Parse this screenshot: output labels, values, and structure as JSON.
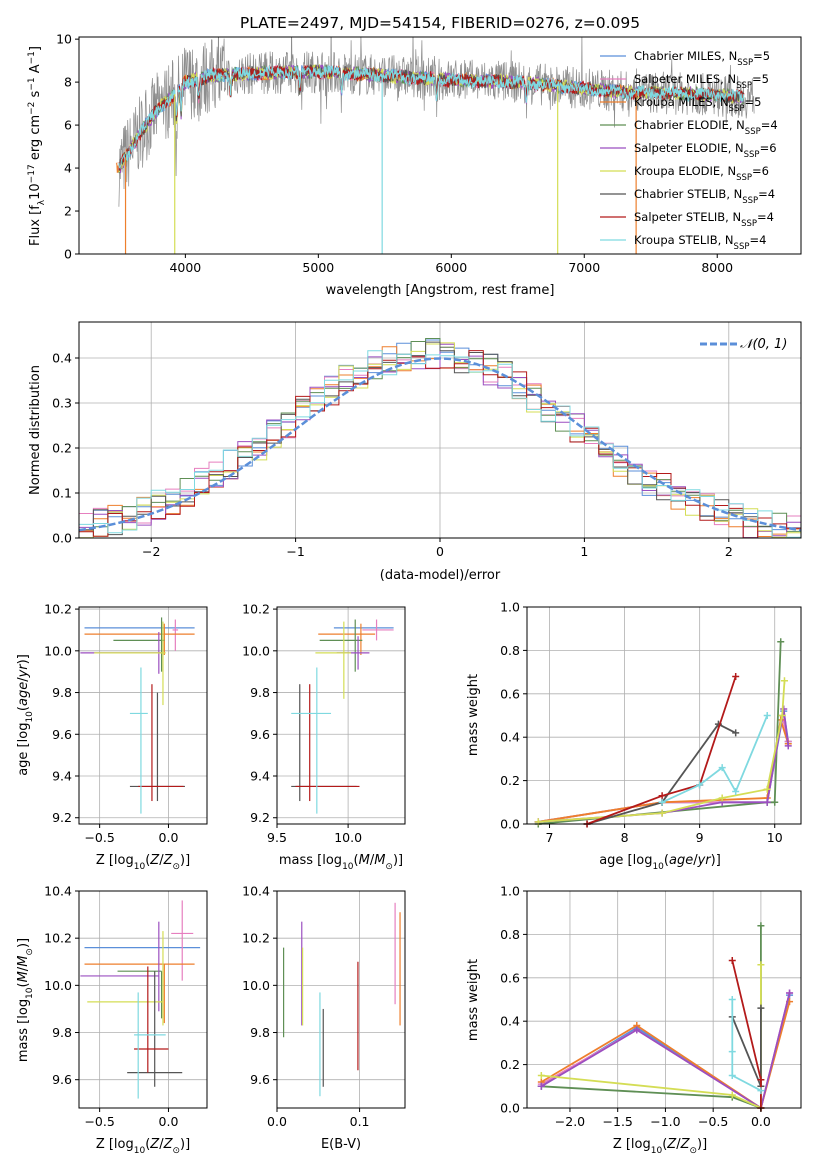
{
  "colors": {
    "chabrier_miles": "#5b8fd9",
    "salpeter_miles": "#e67fbf",
    "kroupa_miles": "#ee7f2d",
    "chabrier_elodie": "#5f8f55",
    "salpeter_elodie": "#9b4fc0",
    "kroupa_elodie": "#d4dd55",
    "chabrier_stelib": "#555555",
    "salpeter_stelib": "#b31a1a",
    "kroupa_stelib": "#7fd9e0",
    "data_spectrum": "#8c8c8c",
    "normal_curve": "#5b8fd9"
  },
  "chart_data": [
    {
      "id": "spectrum",
      "type": "line",
      "title": "PLATE=2497, MJD=54154, FIBERID=0276, z=0.095",
      "xlabel": "wavelength [Angstrom, rest frame]",
      "ylabel": "Flux [f_λ10^-17 erg cm^-2 s^-1 A^-1]",
      "xlim": [
        3200,
        8630
      ],
      "ylim": [
        0,
        10.1
      ],
      "xticks": [
        "4000",
        "5000",
        "6000",
        "7000",
        "8000"
      ],
      "yticks": [
        "0",
        "2",
        "4",
        "6",
        "8",
        "10"
      ],
      "grid": false,
      "legend_position": "right",
      "legend": [
        {
          "label": "Chabrier MILES, N",
          "sub": "SSP",
          "val": "=5",
          "color": "chabrier_miles"
        },
        {
          "label": "Salpeter MILES, N",
          "sub": "SSP",
          "val": "=5",
          "color": "salpeter_miles"
        },
        {
          "label": "Kroupa MILES, N",
          "sub": "SSP",
          "val": "=5",
          "color": "kroupa_miles"
        },
        {
          "label": "Chabrier ELODIE, N",
          "sub": "SSP",
          "val": "=4",
          "color": "chabrier_elodie"
        },
        {
          "label": "Salpeter ELODIE, N",
          "sub": "SSP",
          "val": "=6",
          "color": "salpeter_elodie"
        },
        {
          "label": "Kroupa ELODIE, N",
          "sub": "SSP",
          "val": "=6",
          "color": "kroupa_elodie"
        },
        {
          "label": "Chabrier STELIB, N",
          "sub": "SSP",
          "val": "=4",
          "color": "chabrier_stelib"
        },
        {
          "label": "Salpeter STELIB, N",
          "sub": "SSP",
          "val": "=4",
          "color": "salpeter_stelib"
        },
        {
          "label": "Kroupa STELIB, N",
          "sub": "SSP",
          "val": "=4",
          "color": "kroupa_stelib"
        }
      ],
      "continuum_x": [
        3500,
        3600,
        3700,
        3800,
        3900,
        4000,
        4200,
        4500,
        5000,
        5500,
        6000,
        6500,
        7000,
        7400,
        7600,
        8000,
        8200
      ],
      "continuum_y": [
        4.0,
        5.0,
        6.0,
        6.8,
        7.3,
        8.0,
        8.3,
        8.4,
        8.5,
        8.3,
        8.1,
        8.0,
        7.7,
        7.5,
        7.5,
        7.4,
        7.3
      ]
    },
    {
      "id": "residuals",
      "type": "bar",
      "xlabel": "(data-model)/error",
      "ylabel": "Normed distribution",
      "xlim": [
        -2.5,
        2.5
      ],
      "ylim": [
        0,
        0.48
      ],
      "xticks": [
        "−2",
        "−1",
        "0",
        "1",
        "2"
      ],
      "yticks": [
        "0.0",
        "0.1",
        "0.2",
        "0.3",
        "0.4"
      ],
      "grid": true,
      "legend_position": "top-right",
      "normal_label": "𝒩(0, 1)",
      "bin_edges_start": -2.5,
      "bin_width": 0.1
    },
    {
      "id": "age_vs_Z",
      "type": "scatter",
      "xlabel": "Z [log10(Z/Z⊙)]",
      "ylabel": "age [log10(age/yr)]",
      "xlim": [
        -0.65,
        0.28
      ],
      "ylim": [
        9.17,
        10.21
      ],
      "xticks": [
        "−0.5",
        "0.0"
      ],
      "yticks": [
        "9.2",
        "9.4",
        "9.6",
        "9.8",
        "10.0",
        "10.2"
      ],
      "grid": true,
      "points": [
        {
          "x": -0.03,
          "y": 10.11,
          "xerr": [
            0.58,
            0.22
          ],
          "yerr": [
            0.0,
            0.0
          ],
          "color": "chabrier_miles"
        },
        {
          "x": 0.05,
          "y": 10.1,
          "xerr": [
            0.02,
            0.02
          ],
          "yerr": [
            0.1,
            0.05
          ],
          "color": "salpeter_miles"
        },
        {
          "x": -0.03,
          "y": 10.08,
          "xerr": [
            0.58,
            0.22
          ],
          "yerr": [
            0.1,
            0.05
          ],
          "color": "kroupa_miles"
        },
        {
          "x": -0.05,
          "y": 10.05,
          "xerr": [
            0.35,
            0.02
          ],
          "yerr": [
            0.15,
            0.11
          ],
          "color": "chabrier_elodie"
        },
        {
          "x": -0.07,
          "y": 9.99,
          "xerr": [
            0.57,
            0.03
          ],
          "yerr": [
            0.1,
            0.1
          ],
          "color": "salpeter_elodie"
        },
        {
          "x": -0.04,
          "y": 9.99,
          "xerr": [
            0.5,
            0.02
          ],
          "yerr": [
            0.25,
            0.15
          ],
          "color": "kroupa_elodie"
        },
        {
          "x": -0.08,
          "y": 9.35,
          "xerr": [
            0.2,
            0.2
          ],
          "yerr": [
            0.07,
            0.45
          ],
          "color": "chabrier_stelib"
        },
        {
          "x": -0.12,
          "y": 9.35,
          "xerr": [
            0.1,
            0.23
          ],
          "yerr": [
            0.07,
            0.49
          ],
          "color": "salpeter_stelib"
        },
        {
          "x": -0.2,
          "y": 9.7,
          "xerr": [
            0.08,
            0.05
          ],
          "yerr": [
            0.48,
            0.22
          ],
          "color": "kroupa_stelib"
        }
      ]
    },
    {
      "id": "age_vs_mass",
      "type": "scatter",
      "xlabel": "mass [log10(M/M⊙)]",
      "ylabel": "",
      "xlim": [
        9.5,
        10.4
      ],
      "ylim": [
        9.17,
        10.21
      ],
      "xticks": [
        "9.5",
        "10.0"
      ],
      "yticks": [
        "9.2",
        "9.4",
        "9.6",
        "9.8",
        "10.0",
        "10.2"
      ],
      "grid": true,
      "points": [
        {
          "x": 10.16,
          "y": 10.11,
          "xerr": [
            0.26,
            0.16
          ],
          "yerr": [
            0.0,
            0.0
          ],
          "color": "chabrier_miles"
        },
        {
          "x": 10.2,
          "y": 10.1,
          "xerr": [
            0.1,
            0.12
          ],
          "yerr": [
            0.05,
            0.05
          ],
          "color": "salpeter_miles"
        },
        {
          "x": 10.09,
          "y": 10.08,
          "xerr": [
            0.3,
            0.1
          ],
          "yerr": [
            0.1,
            0.05
          ],
          "color": "kroupa_miles"
        },
        {
          "x": 10.05,
          "y": 10.05,
          "xerr": [
            0.25,
            0.05
          ],
          "yerr": [
            0.15,
            0.1
          ],
          "color": "chabrier_elodie"
        },
        {
          "x": 10.07,
          "y": 9.99,
          "xerr": [
            0.15,
            0.08
          ],
          "yerr": [
            0.08,
            0.08
          ],
          "color": "salpeter_elodie"
        },
        {
          "x": 9.97,
          "y": 9.99,
          "xerr": [
            0.2,
            0.05
          ],
          "yerr": [
            0.22,
            0.15
          ],
          "color": "kroupa_elodie"
        },
        {
          "x": 9.66,
          "y": 9.35,
          "xerr": [
            0.06,
            0.4
          ],
          "yerr": [
            0.07,
            0.49
          ],
          "color": "chabrier_stelib"
        },
        {
          "x": 9.73,
          "y": 9.35,
          "xerr": [
            0.1,
            0.35
          ],
          "yerr": [
            0.07,
            0.49
          ],
          "color": "salpeter_stelib"
        },
        {
          "x": 9.78,
          "y": 9.7,
          "xerr": [
            0.18,
            0.1
          ],
          "yerr": [
            0.48,
            0.22
          ],
          "color": "kroupa_stelib"
        }
      ]
    },
    {
      "id": "massweight_vs_age",
      "type": "line",
      "xlabel": "age [log10(age/yr)]",
      "ylabel": "mass weight",
      "xlim": [
        6.7,
        10.35
      ],
      "ylim": [
        0,
        1.0
      ],
      "xticks": [
        "7",
        "8",
        "9",
        "10"
      ],
      "yticks": [
        "0.0",
        "0.2",
        "0.4",
        "0.6",
        "0.8",
        "1.0"
      ],
      "grid": true,
      "series": [
        {
          "color": "chabrier_miles",
          "x": [
            6.85,
            8.5,
            9.9,
            10.12,
            10.18
          ],
          "y": [
            0.01,
            0.1,
            0.1,
            0.52,
            0.38
          ]
        },
        {
          "color": "salpeter_miles",
          "x": [
            6.85,
            8.5,
            9.9,
            10.1,
            10.18
          ],
          "y": [
            0.01,
            0.1,
            0.1,
            0.5,
            0.38
          ]
        },
        {
          "color": "kroupa_miles",
          "x": [
            6.85,
            8.5,
            9.9,
            10.08,
            10.18
          ],
          "y": [
            0.01,
            0.1,
            0.12,
            0.48,
            0.37
          ]
        },
        {
          "color": "chabrier_elodie",
          "x": [
            6.85,
            9.9,
            10.0,
            10.08
          ],
          "y": [
            0.0,
            0.1,
            0.1,
            0.84
          ]
        },
        {
          "color": "salpeter_elodie",
          "x": [
            6.85,
            8.5,
            9.3,
            9.9,
            10.12,
            10.18
          ],
          "y": [
            0.01,
            0.05,
            0.1,
            0.1,
            0.53,
            0.36
          ]
        },
        {
          "color": "kroupa_elodie",
          "x": [
            6.85,
            8.5,
            9.3,
            9.9,
            10.1,
            10.13
          ],
          "y": [
            0.01,
            0.05,
            0.12,
            0.16,
            0.5,
            0.66
          ]
        },
        {
          "color": "chabrier_stelib",
          "x": [
            7.5,
            8.5,
            9.25,
            9.48
          ],
          "y": [
            0.0,
            0.1,
            0.46,
            0.42
          ]
        },
        {
          "color": "salpeter_stelib",
          "x": [
            7.5,
            8.5,
            9.0,
            9.48
          ],
          "y": [
            0.0,
            0.13,
            0.18,
            0.68
          ]
        },
        {
          "color": "kroupa_stelib",
          "x": [
            8.5,
            9.0,
            9.3,
            9.48,
            9.9
          ],
          "y": [
            0.1,
            0.18,
            0.26,
            0.15,
            0.5
          ]
        }
      ]
    },
    {
      "id": "mass_vs_Z",
      "type": "scatter",
      "xlabel": "Z [log10(Z/Z⊙)]",
      "ylabel": "mass [log10(M/M⊙)]",
      "xlim": [
        -0.65,
        0.28
      ],
      "ylim": [
        9.48,
        10.4
      ],
      "xticks": [
        "−0.5",
        "0.0"
      ],
      "yticks": [
        "9.6",
        "9.8",
        "10.0",
        "10.2",
        "10.4"
      ],
      "grid": true,
      "points": [
        {
          "x": -0.03,
          "y": 10.16,
          "xerr": [
            0.58,
            0.26
          ],
          "yerr": [
            0.0,
            0.0
          ],
          "color": "chabrier_miles"
        },
        {
          "x": 0.1,
          "y": 10.22,
          "xerr": [
            0.08,
            0.08
          ],
          "yerr": [
            0.2,
            0.14
          ],
          "color": "salpeter_miles"
        },
        {
          "x": -0.03,
          "y": 10.09,
          "xerr": [
            0.58,
            0.22
          ],
          "yerr": [
            0.25,
            0.0
          ],
          "color": "kroupa_miles"
        },
        {
          "x": -0.05,
          "y": 10.06,
          "xerr": [
            0.32,
            0.0
          ],
          "yerr": [
            0.2,
            0.0
          ],
          "color": "chabrier_elodie"
        },
        {
          "x": -0.07,
          "y": 10.04,
          "xerr": [
            0.57,
            0.0
          ],
          "yerr": [
            0.15,
            0.23
          ],
          "color": "salpeter_elodie"
        },
        {
          "x": -0.04,
          "y": 9.93,
          "xerr": [
            0.55,
            0.0
          ],
          "yerr": [
            0.1,
            0.3
          ],
          "color": "kroupa_elodie"
        },
        {
          "x": -0.1,
          "y": 9.63,
          "xerr": [
            0.2,
            0.2
          ],
          "yerr": [
            0.06,
            0.43
          ],
          "color": "chabrier_stelib"
        },
        {
          "x": -0.15,
          "y": 9.73,
          "xerr": [
            0.1,
            0.15
          ],
          "yerr": [
            0.1,
            0.35
          ],
          "color": "salpeter_stelib"
        },
        {
          "x": -0.22,
          "y": 9.79,
          "xerr": [
            0.03,
            0.2
          ],
          "yerr": [
            0.27,
            0.18
          ],
          "color": "kroupa_stelib"
        }
      ]
    },
    {
      "id": "mass_vs_ebv",
      "type": "scatter",
      "xlabel": "E(B-V)",
      "ylabel": "",
      "xlim": [
        0.0,
        0.155
      ],
      "ylim": [
        9.48,
        10.4
      ],
      "xticks": [
        "0.0",
        "0.1"
      ],
      "yticks": [
        "9.6",
        "9.8",
        "10.0",
        "10.2",
        "10.4"
      ],
      "grid": true,
      "points": [
        {
          "x": 0.008,
          "y": 9.98,
          "xerr": [
            0,
            0
          ],
          "yerr": [
            0.2,
            0.18
          ],
          "color": "chabrier_elodie"
        },
        {
          "x": 0.03,
          "y": 10.05,
          "xerr": [
            0,
            0
          ],
          "yerr": [
            0.22,
            0.22
          ],
          "color": "salpeter_elodie"
        },
        {
          "x": 0.031,
          "y": 10.0,
          "xerr": [
            0,
            0
          ],
          "yerr": [
            0.17,
            0.16
          ],
          "color": "kroupa_elodie"
        },
        {
          "x": 0.052,
          "y": 9.75,
          "xerr": [
            0,
            0
          ],
          "yerr": [
            0.22,
            0.22
          ],
          "color": "kroupa_stelib"
        },
        {
          "x": 0.056,
          "y": 9.72,
          "xerr": [
            0,
            0
          ],
          "yerr": [
            0.15,
            0.18
          ],
          "color": "chabrier_stelib"
        },
        {
          "x": 0.098,
          "y": 9.88,
          "xerr": [
            0,
            0
          ],
          "yerr": [
            0.24,
            0.22
          ],
          "color": "salpeter_stelib"
        },
        {
          "x": 0.143,
          "y": 10.12,
          "xerr": [
            0,
            0
          ],
          "yerr": [
            0.2,
            0.23
          ],
          "color": "salpeter_miles"
        },
        {
          "x": 0.149,
          "y": 10.08,
          "xerr": [
            0,
            0
          ],
          "yerr": [
            0.25,
            0.23
          ],
          "color": "kroupa_miles"
        }
      ]
    },
    {
      "id": "massweight_vs_Z",
      "type": "line",
      "xlabel": "Z [log10(Z/Z⊙)]",
      "ylabel": "mass weight",
      "xlim": [
        -2.45,
        0.42
      ],
      "ylim": [
        0,
        1.0
      ],
      "xticks": [
        "−2.0",
        "−1.5",
        "−1.0",
        "−0.5",
        "0.0"
      ],
      "yticks": [
        "0.0",
        "0.2",
        "0.4",
        "0.6",
        "0.8",
        "1.0"
      ],
      "grid": true,
      "series": [
        {
          "color": "chabrier_miles",
          "x": [
            -2.3,
            -1.3,
            0.0,
            0.3
          ],
          "y": [
            0.1,
            0.37,
            0.0,
            0.52
          ]
        },
        {
          "color": "salpeter_miles",
          "x": [
            -2.3,
            -1.3,
            0.0,
            0.3
          ],
          "y": [
            0.11,
            0.36,
            0.0,
            0.53
          ]
        },
        {
          "color": "kroupa_miles",
          "x": [
            -2.3,
            -1.3,
            0.0,
            0.3
          ],
          "y": [
            0.12,
            0.38,
            0.0,
            0.49
          ]
        },
        {
          "color": "chabrier_elodie",
          "x": [
            -2.3,
            -0.3,
            0.0,
            0.0
          ],
          "y": [
            0.1,
            0.05,
            0.0,
            0.84
          ]
        },
        {
          "color": "salpeter_elodie",
          "x": [
            -2.3,
            -1.3,
            0.0,
            0.3
          ],
          "y": [
            0.1,
            0.36,
            0.0,
            0.53
          ]
        },
        {
          "color": "kroupa_elodie",
          "x": [
            -2.3,
            -0.3,
            0.0,
            0.0
          ],
          "y": [
            0.15,
            0.06,
            0.0,
            0.66
          ]
        },
        {
          "color": "chabrier_stelib",
          "x": [
            -0.3,
            0.0,
            0.0
          ],
          "y": [
            0.42,
            0.1,
            0.46
          ]
        },
        {
          "color": "salpeter_stelib",
          "x": [
            -0.3,
            0.0,
            0.0
          ],
          "y": [
            0.68,
            0.13,
            0.0
          ]
        },
        {
          "color": "kroupa_stelib",
          "x": [
            -0.3,
            -0.3,
            -0.3,
            0.0
          ],
          "y": [
            0.5,
            0.26,
            0.15,
            0.08
          ]
        }
      ]
    }
  ]
}
